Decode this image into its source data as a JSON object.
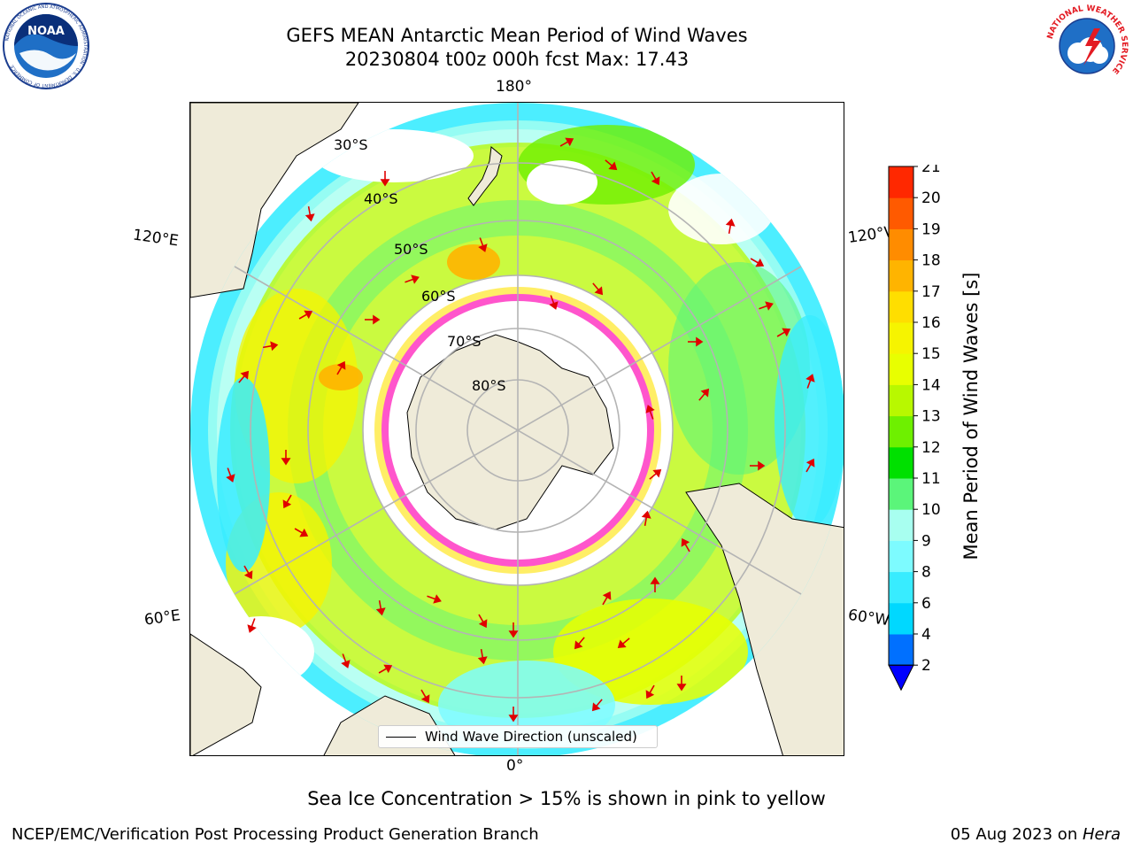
{
  "title": {
    "line1": "GEFS MEAN Antarctic Mean Period of Wind Waves",
    "line2": "20230804 t00z 000h fcst   Max: 17.43"
  },
  "logos": {
    "left": {
      "name": "noaa-logo",
      "text": "NOAA",
      "ring": "NATIONAL OCEANIC AND ATMOSPHERIC ADMINISTRATION · U.S. DEPARTMENT OF COMMERCE"
    },
    "right": {
      "name": "nws-logo",
      "ring": "NATIONAL WEATHER SERVICE"
    }
  },
  "map": {
    "projection": "south-polar-stereographic",
    "lon_labels": {
      "top": "180°",
      "bottom": "0°",
      "upper_left": "120°E",
      "upper_right": "120°W",
      "lower_left": "60°E",
      "lower_right": "60°W"
    },
    "lat_labels": [
      "30°S",
      "40°S",
      "50°S",
      "60°S",
      "70°S",
      "80°S"
    ],
    "legend_label": "Wind Wave Direction (unscaled)",
    "colors": {
      "land": "#efebd9",
      "grid": "#b4b4b4",
      "arrow": "#ff0000",
      "ice_pink": "#ff55cc",
      "ice_yellow": "#ffee66"
    }
  },
  "colorbar": {
    "title": "Mean Period of Wind Waves [s]",
    "ticks": [
      "2",
      "4",
      "6",
      "8",
      "9",
      "10",
      "11",
      "12",
      "13",
      "14",
      "15",
      "16",
      "17",
      "18",
      "19",
      "20",
      "21"
    ],
    "colors": [
      "#0070ff",
      "#00d8ff",
      "#38ecff",
      "#7dfbff",
      "#a8fff0",
      "#5bf57a",
      "#00e000",
      "#6ef000",
      "#b8f800",
      "#e8ff00",
      "#f6f400",
      "#ffde00",
      "#ffb400",
      "#ff8c00",
      "#ff5a00",
      "#ff2800",
      "#ff0000"
    ],
    "extend_color": "#0000ff"
  },
  "note": "Sea Ice Concentration > 15% is shown in pink to yellow",
  "footer": {
    "left": "NCEP/EMC/Verification Post Processing Product Generation Branch",
    "right_date": "05 Aug 2023 on ",
    "right_machine": "Hera"
  }
}
